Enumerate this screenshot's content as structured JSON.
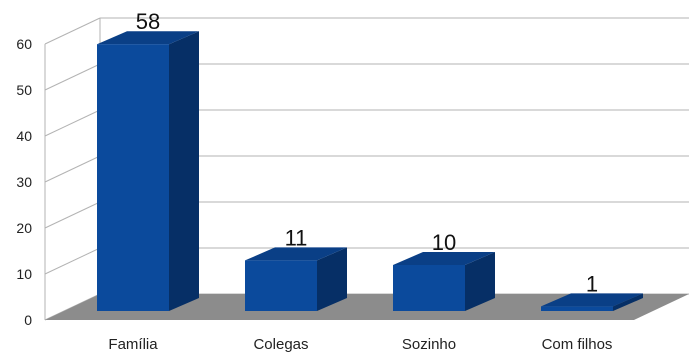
{
  "chart_data": {
    "type": "bar",
    "three_d": true,
    "categories": [
      "Família",
      "Colegas",
      "Sozinho",
      "Com filhos"
    ],
    "values": [
      58,
      11,
      10,
      1
    ],
    "data_labels": [
      "58",
      "11",
      "10",
      "1"
    ],
    "title": "",
    "xlabel": "",
    "ylabel": "",
    "ylim": [
      0,
      60
    ],
    "yticks": [
      "0",
      "10",
      "20",
      "30",
      "40",
      "50",
      "60"
    ],
    "grid": true,
    "legend": "none",
    "colors": {
      "bar_front": "#0b4a9c",
      "bar_side": "#062f66",
      "bar_top": "#0a3f86",
      "floor": "#8c8c8c",
      "grid": "#b3b3b3"
    }
  }
}
